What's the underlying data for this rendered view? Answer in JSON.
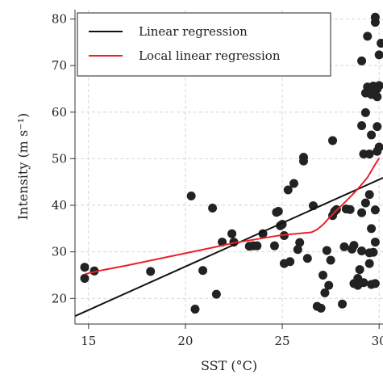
{
  "chart_data": {
    "type": "scatter",
    "xlabel": "SST (°C)",
    "ylabel": "Intensity (m s⁻¹)",
    "xlim": [
      14.3,
      30.2
    ],
    "ylim": [
      14.5,
      82
    ],
    "x_ticks": [
      15,
      20,
      25,
      30
    ],
    "y_ticks": [
      20,
      30,
      40,
      50,
      60,
      70,
      80
    ],
    "grid": true,
    "legend_position": "top-left",
    "point_color": "#222222",
    "series": [
      {
        "name": "",
        "kind": "points",
        "points": [
          [
            14.8,
            24.3
          ],
          [
            14.8,
            26.7
          ],
          [
            15.3,
            25.9
          ],
          [
            18.2,
            25.8
          ],
          [
            20.3,
            42.0
          ],
          [
            20.5,
            17.7
          ],
          [
            20.9,
            26.0
          ],
          [
            21.4,
            39.4
          ],
          [
            21.6,
            20.9
          ],
          [
            21.9,
            32.1
          ],
          [
            22.4,
            33.9
          ],
          [
            22.5,
            32.1
          ],
          [
            23.3,
            31.2
          ],
          [
            23.5,
            31.3
          ],
          [
            23.7,
            31.3
          ],
          [
            24.0,
            33.9
          ],
          [
            24.6,
            31.3
          ],
          [
            24.7,
            38.5
          ],
          [
            24.8,
            38.7
          ],
          [
            24.9,
            35.6
          ],
          [
            25.0,
            35.9
          ],
          [
            25.1,
            27.5
          ],
          [
            25.1,
            33.5
          ],
          [
            25.3,
            43.3
          ],
          [
            25.4,
            27.9
          ],
          [
            25.6,
            44.7
          ],
          [
            25.8,
            30.5
          ],
          [
            25.9,
            32.0
          ],
          [
            26.1,
            49.5
          ],
          [
            26.1,
            50.3
          ],
          [
            26.3,
            28.6
          ],
          [
            26.6,
            39.9
          ],
          [
            26.8,
            18.3
          ],
          [
            27.0,
            17.9
          ],
          [
            27.1,
            25.0
          ],
          [
            27.2,
            21.2
          ],
          [
            27.3,
            30.3
          ],
          [
            27.4,
            22.8
          ],
          [
            27.5,
            28.2
          ],
          [
            27.6,
            37.8
          ],
          [
            27.6,
            53.9
          ],
          [
            27.7,
            38.7
          ],
          [
            27.8,
            39.1
          ],
          [
            28.1,
            18.8
          ],
          [
            28.2,
            31.1
          ],
          [
            28.3,
            39.2
          ],
          [
            28.5,
            39.1
          ],
          [
            28.6,
            30.6
          ],
          [
            28.7,
            31.4
          ],
          [
            28.7,
            23.2
          ],
          [
            28.9,
            22.8
          ],
          [
            28.9,
            24.3
          ],
          [
            29.0,
            26.2
          ],
          [
            29.1,
            30.2
          ],
          [
            29.1,
            38.4
          ],
          [
            29.1,
            57.1
          ],
          [
            29.1,
            71.0
          ],
          [
            29.2,
            23.4
          ],
          [
            29.2,
            51.0
          ],
          [
            29.3,
            40.5
          ],
          [
            29.3,
            59.9
          ],
          [
            29.3,
            64.1
          ],
          [
            29.4,
            65.4
          ],
          [
            29.4,
            76.3
          ],
          [
            29.5,
            42.3
          ],
          [
            29.5,
            29.8
          ],
          [
            29.5,
            51.0
          ],
          [
            29.5,
            64.3
          ],
          [
            29.5,
            27.5
          ],
          [
            29.6,
            23.0
          ],
          [
            29.6,
            35.0
          ],
          [
            29.6,
            55.1
          ],
          [
            29.6,
            63.8
          ],
          [
            29.7,
            29.9
          ],
          [
            29.7,
            65.6
          ],
          [
            29.8,
            32.1
          ],
          [
            29.8,
            39.0
          ],
          [
            29.8,
            23.2
          ],
          [
            29.8,
            80.4
          ],
          [
            29.8,
            79.3
          ],
          [
            29.9,
            51.6
          ],
          [
            29.9,
            56.9
          ],
          [
            29.9,
            63.3
          ],
          [
            29.9,
            65.0
          ],
          [
            30.0,
            52.5
          ],
          [
            30.0,
            65.7
          ],
          [
            30.0,
            72.3
          ],
          [
            30.1,
            74.8
          ]
        ]
      },
      {
        "name": "Linear regression",
        "kind": "line",
        "color": "#111111",
        "x": [
          14.3,
          30.2
        ],
        "y": [
          16.2,
          45.9
        ]
      },
      {
        "name": "Local linear regression",
        "kind": "line",
        "color": "#e8232a",
        "x": [
          14.8,
          15.5,
          17.0,
          18.5,
          20.0,
          21.5,
          22.5,
          23.5,
          24.5,
          25.0,
          25.5,
          26.0,
          26.5,
          26.8,
          27.1,
          27.4,
          27.8,
          28.2,
          28.6,
          29.0,
          29.4,
          29.8,
          30.0
        ],
        "y": [
          25.2,
          25.9,
          27.1,
          28.4,
          29.7,
          31.0,
          31.9,
          32.6,
          33.3,
          33.6,
          33.8,
          34.0,
          34.2,
          34.8,
          35.8,
          37.2,
          38.9,
          40.5,
          42.2,
          44.0,
          46.0,
          48.8,
          50.1
        ]
      }
    ]
  }
}
